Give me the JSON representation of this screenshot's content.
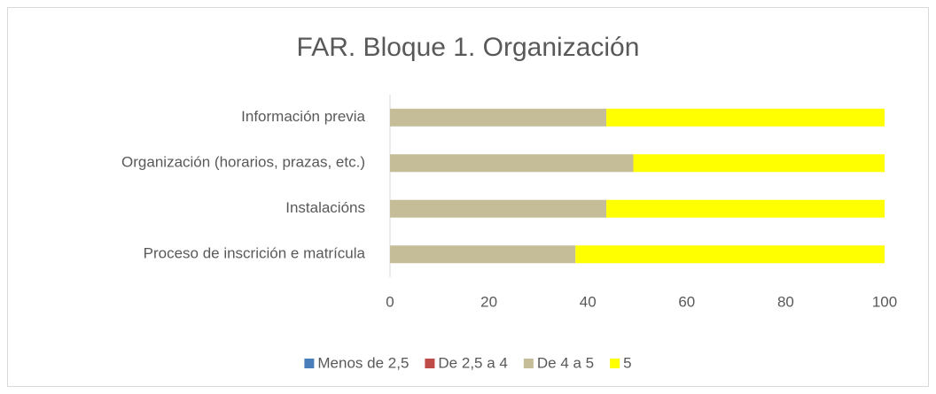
{
  "chart_data": {
    "type": "bar",
    "orientation": "horizontal",
    "stacked": true,
    "title": "FAR. Bloque 1. Organización",
    "categories": [
      "Información previa",
      "Organización (horarios, prazas, etc.)",
      "Instalacións",
      "Proceso de inscrición e matrícula"
    ],
    "series": [
      {
        "name": "Menos de 2,5",
        "color": "#4a7ebb",
        "values": [
          0,
          0,
          0,
          0
        ]
      },
      {
        "name": "De 2,5 a 4",
        "color": "#be4b48",
        "values": [
          0,
          0,
          0,
          0
        ]
      },
      {
        "name": "De 4 a 5",
        "color": "#c4bd97",
        "values": [
          43.75,
          49.2,
          43.75,
          37.5
        ]
      },
      {
        "name": "5",
        "color": "#ffff00",
        "values": [
          56.25,
          50.8,
          56.25,
          62.5
        ]
      }
    ],
    "xlim": [
      0,
      100
    ],
    "xticks": [
      0,
      20,
      40,
      60,
      80,
      100
    ],
    "grid": false,
    "legend": "bottom"
  }
}
